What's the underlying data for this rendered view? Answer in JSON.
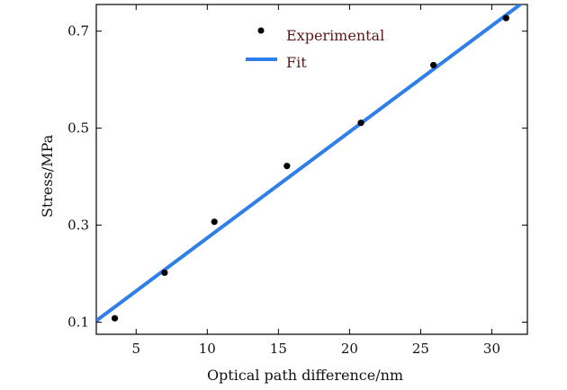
{
  "chart_data": {
    "type": "scatter",
    "title": "",
    "xlabel": "Optical path difference/nm",
    "ylabel": "Stress/MPa",
    "xlim": [
      2.2,
      32.5
    ],
    "ylim": [
      0.075,
      0.755
    ],
    "xticks": [
      5,
      10,
      15,
      20,
      25,
      30
    ],
    "yticks": [
      0.1,
      0.3,
      0.5,
      0.7
    ],
    "xtick_labels": [
      "5",
      "10",
      "15",
      "20",
      "25",
      "30"
    ],
    "ytick_labels": [
      "0.1",
      "0.3",
      "0.5",
      "0.7"
    ],
    "grid": false,
    "legend_position": "top-center",
    "series": [
      {
        "name": "Experimental",
        "kind": "scatter",
        "color": "#000000",
        "x": [
          3.5,
          7.0,
          10.5,
          15.6,
          20.8,
          25.9,
          31.0
        ],
        "y": [
          0.108,
          0.202,
          0.307,
          0.422,
          0.511,
          0.63,
          0.727
        ]
      },
      {
        "name": "Fit",
        "kind": "line",
        "color": "#2f7fe8",
        "x": [
          2.2,
          32.5
        ],
        "y": [
          0.103,
          0.766
        ]
      }
    ]
  }
}
